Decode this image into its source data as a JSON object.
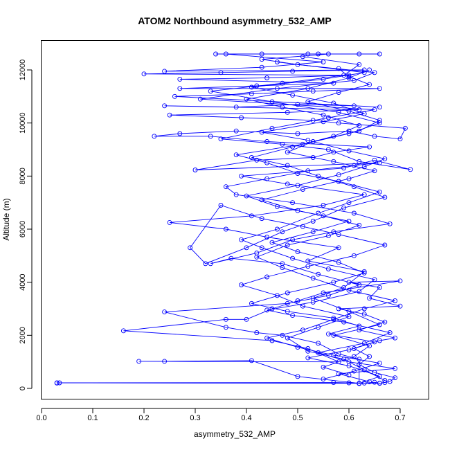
{
  "chart_data": {
    "type": "line",
    "title": "ATOM2 Northbound asymmetry_532_AMP",
    "xlabel": "asymmetry_532_AMP",
    "ylabel": "Altitude (m)",
    "xlim": [
      0.0,
      0.75
    ],
    "ylim": [
      0,
      12800
    ],
    "x_ticks": [
      "0.0",
      "0.1",
      "0.2",
      "0.3",
      "0.4",
      "0.5",
      "0.6",
      "0.7"
    ],
    "y_ticks": [
      "0",
      "2000",
      "4000",
      "6000",
      "8000",
      "10000",
      "12000"
    ],
    "grid": false,
    "legend": "none",
    "marker": "open-circle",
    "color": "#0000ff",
    "series": [
      {
        "points": [
          [
            0.03,
            200
          ],
          [
            0.03,
            210
          ],
          [
            0.57,
            220
          ],
          [
            0.6,
            210
          ],
          [
            0.63,
            200
          ],
          [
            0.65,
            230
          ],
          [
            0.66,
            190
          ],
          [
            0.67,
            220
          ],
          [
            0.68,
            260
          ],
          [
            0.69,
            400
          ],
          [
            0.65,
            600
          ],
          [
            0.62,
            900
          ],
          [
            0.64,
            1200
          ],
          [
            0.61,
            1500
          ],
          [
            0.66,
            1800
          ],
          [
            0.69,
            1900
          ],
          [
            0.62,
            2200
          ],
          [
            0.67,
            2500
          ],
          [
            0.63,
            2800
          ],
          [
            0.58,
            3000
          ],
          [
            0.7,
            3100
          ],
          [
            0.64,
            3400
          ],
          [
            0.66,
            3800
          ],
          [
            0.6,
            4000
          ],
          [
            0.7,
            4050
          ],
          [
            0.55,
            3600
          ],
          [
            0.5,
            3300
          ],
          [
            0.45,
            3000
          ],
          [
            0.4,
            2600
          ],
          [
            0.36,
            2600
          ],
          [
            0.16,
            2170
          ],
          [
            0.45,
            1800
          ],
          [
            0.52,
            1500
          ],
          [
            0.58,
            1000
          ],
          [
            0.19,
            1020
          ],
          [
            0.24,
            1020
          ],
          [
            0.41,
            1050
          ],
          [
            0.5,
            450
          ],
          [
            0.62,
            190
          ],
          [
            0.66,
            200
          ],
          [
            0.035,
            210
          ],
          [
            0.62,
            190
          ],
          [
            0.62,
            1100
          ],
          [
            0.58,
            1300
          ],
          [
            0.54,
            1700
          ],
          [
            0.47,
            2000
          ],
          [
            0.42,
            2100
          ],
          [
            0.36,
            2300
          ],
          [
            0.24,
            2880
          ],
          [
            0.48,
            3200
          ],
          [
            0.56,
            3500
          ],
          [
            0.62,
            3900
          ],
          [
            0.54,
            4300
          ],
          [
            0.47,
            4700
          ],
          [
            0.37,
            4900
          ],
          [
            0.33,
            4700
          ],
          [
            0.42,
            5100
          ],
          [
            0.49,
            5600
          ],
          [
            0.57,
            5900
          ],
          [
            0.68,
            6200
          ],
          [
            0.61,
            6600
          ],
          [
            0.49,
            7000
          ],
          [
            0.38,
            7300
          ],
          [
            0.36,
            7600
          ],
          [
            0.44,
            7900
          ],
          [
            0.52,
            8200
          ],
          [
            0.61,
            8400
          ],
          [
            0.66,
            8500
          ],
          [
            0.3,
            8230
          ],
          [
            0.42,
            8600
          ],
          [
            0.53,
            8700
          ],
          [
            0.57,
            8900
          ],
          [
            0.64,
            9100
          ],
          [
            0.44,
            9300
          ],
          [
            0.33,
            9500
          ],
          [
            0.22,
            9500
          ],
          [
            0.27,
            9600
          ],
          [
            0.38,
            9700
          ],
          [
            0.5,
            9600
          ],
          [
            0.6,
            9700
          ],
          [
            0.65,
            9500
          ],
          [
            0.7,
            9400
          ],
          [
            0.71,
            9800
          ],
          [
            0.58,
            10000
          ],
          [
            0.53,
            10100
          ],
          [
            0.39,
            10200
          ],
          [
            0.25,
            10300
          ],
          [
            0.48,
            10400
          ],
          [
            0.62,
            10500
          ],
          [
            0.24,
            10650
          ],
          [
            0.38,
            10600
          ],
          [
            0.5,
            10700
          ],
          [
            0.61,
            10650
          ],
          [
            0.66,
            10600
          ],
          [
            0.26,
            11000
          ],
          [
            0.41,
            11100
          ],
          [
            0.53,
            11200
          ],
          [
            0.66,
            11300
          ],
          [
            0.27,
            11300
          ],
          [
            0.42,
            11400
          ],
          [
            0.57,
            11500
          ],
          [
            0.27,
            11650
          ],
          [
            0.44,
            11700
          ],
          [
            0.6,
            11800
          ],
          [
            0.2,
            11850
          ],
          [
            0.35,
            11900
          ],
          [
            0.49,
            11950
          ],
          [
            0.63,
            12000
          ],
          [
            0.24,
            11950
          ],
          [
            0.43,
            12100
          ],
          [
            0.55,
            12300
          ],
          [
            0.36,
            12600
          ],
          [
            0.43,
            12600
          ],
          [
            0.52,
            12600
          ],
          [
            0.54,
            12600
          ],
          [
            0.62,
            12600
          ],
          [
            0.66,
            12600
          ],
          [
            0.34,
            12600
          ]
        ]
      },
      {
        "points": [
          [
            0.6,
            500
          ],
          [
            0.55,
            800
          ],
          [
            0.61,
            1200
          ],
          [
            0.64,
            1600
          ],
          [
            0.57,
            2000
          ],
          [
            0.66,
            2400
          ],
          [
            0.6,
            2900
          ],
          [
            0.53,
            3400
          ],
          [
            0.59,
            3800
          ],
          [
            0.63,
            4400
          ],
          [
            0.52,
            4800
          ],
          [
            0.58,
            5300
          ],
          [
            0.44,
            5700
          ],
          [
            0.36,
            6000
          ],
          [
            0.25,
            6250
          ],
          [
            0.41,
            6500
          ],
          [
            0.55,
            6900
          ],
          [
            0.63,
            7300
          ],
          [
            0.48,
            7700
          ],
          [
            0.39,
            8000
          ],
          [
            0.59,
            8300
          ],
          [
            0.65,
            8600
          ],
          [
            0.72,
            8250
          ],
          [
            0.62,
            8550
          ],
          [
            0.56,
            9000
          ],
          [
            0.47,
            9200
          ],
          [
            0.35,
            9400
          ],
          [
            0.45,
            9800
          ],
          [
            0.56,
            10200
          ],
          [
            0.65,
            10500
          ],
          [
            0.31,
            10900
          ],
          [
            0.46,
            11300
          ],
          [
            0.61,
            11600
          ],
          [
            0.65,
            11900
          ],
          [
            0.5,
            12200
          ],
          [
            0.43,
            12400
          ],
          [
            0.56,
            12600
          ]
        ]
      },
      {
        "points": [
          [
            0.67,
            300
          ],
          [
            0.63,
            700
          ],
          [
            0.59,
            1100
          ],
          [
            0.52,
            1400
          ],
          [
            0.48,
            1900
          ],
          [
            0.54,
            2300
          ],
          [
            0.6,
            2700
          ],
          [
            0.51,
            3100
          ],
          [
            0.46,
            3500
          ],
          [
            0.39,
            3900
          ],
          [
            0.44,
            4200
          ],
          [
            0.52,
            4600
          ],
          [
            0.61,
            5000
          ],
          [
            0.67,
            5400
          ],
          [
            0.58,
            5800
          ],
          [
            0.51,
            6100
          ],
          [
            0.43,
            6400
          ],
          [
            0.35,
            6900
          ],
          [
            0.29,
            5300
          ],
          [
            0.32,
            4700
          ],
          [
            0.4,
            5300
          ],
          [
            0.47,
            5900
          ],
          [
            0.53,
            6300
          ],
          [
            0.59,
            6800
          ],
          [
            0.67,
            7200
          ],
          [
            0.61,
            7600
          ],
          [
            0.54,
            8000
          ],
          [
            0.48,
            8400
          ],
          [
            0.41,
            8700
          ],
          [
            0.49,
            9100
          ],
          [
            0.57,
            9500
          ],
          [
            0.62,
            9900
          ],
          [
            0.55,
            10300
          ],
          [
            0.47,
            10600
          ],
          [
            0.4,
            10900
          ],
          [
            0.52,
            11300
          ],
          [
            0.6,
            11700
          ],
          [
            0.64,
            12000
          ]
        ]
      },
      {
        "points": [
          [
            0.64,
            250
          ],
          [
            0.58,
            550
          ],
          [
            0.69,
            750
          ],
          [
            0.6,
            1000
          ],
          [
            0.54,
            1350
          ],
          [
            0.63,
            1700
          ],
          [
            0.68,
            2100
          ],
          [
            0.59,
            2500
          ],
          [
            0.49,
            2750
          ],
          [
            0.44,
            2950
          ],
          [
            0.53,
            3250
          ],
          [
            0.62,
            3650
          ],
          [
            0.65,
            4100
          ],
          [
            0.56,
            4500
          ],
          [
            0.49,
            4900
          ],
          [
            0.43,
            5300
          ],
          [
            0.39,
            5600
          ],
          [
            0.46,
            6000
          ],
          [
            0.54,
            6600
          ],
          [
            0.6,
            7000
          ],
          [
            0.66,
            7400
          ],
          [
            0.58,
            7800
          ],
          [
            0.5,
            8100
          ],
          [
            0.44,
            8500
          ],
          [
            0.38,
            8800
          ],
          [
            0.51,
            9200
          ],
          [
            0.6,
            9600
          ],
          [
            0.66,
            10000
          ],
          [
            0.58,
            10400
          ],
          [
            0.45,
            10800
          ],
          [
            0.33,
            11200
          ],
          [
            0.47,
            11500
          ],
          [
            0.59,
            11800
          ],
          [
            0.62,
            12200
          ],
          [
            0.51,
            12500
          ]
        ]
      },
      {
        "points": [
          [
            0.55,
            350
          ],
          [
            0.61,
            650
          ],
          [
            0.66,
            950
          ],
          [
            0.57,
            1250
          ],
          [
            0.5,
            1550
          ],
          [
            0.44,
            1900
          ],
          [
            0.51,
            2200
          ],
          [
            0.57,
            2600
          ],
          [
            0.63,
            3000
          ],
          [
            0.69,
            3300
          ],
          [
            0.6,
            3700
          ],
          [
            0.53,
            4150
          ],
          [
            0.47,
            4550
          ],
          [
            0.42,
            4950
          ],
          [
            0.48,
            5400
          ],
          [
            0.56,
            5750
          ],
          [
            0.62,
            6150
          ],
          [
            0.55,
            6500
          ],
          [
            0.46,
            6850
          ],
          [
            0.4,
            7250
          ],
          [
            0.5,
            7650
          ],
          [
            0.58,
            8050
          ],
          [
            0.63,
            8350
          ],
          [
            0.67,
            8650
          ],
          [
            0.6,
            8950
          ],
          [
            0.52,
            9350
          ],
          [
            0.43,
            9650
          ],
          [
            0.55,
            10050
          ],
          [
            0.63,
            10350
          ],
          [
            0.57,
            10750
          ],
          [
            0.49,
            11050
          ],
          [
            0.41,
            11350
          ],
          [
            0.55,
            11650
          ],
          [
            0.63,
            11900
          ],
          [
            0.46,
            12300
          ]
        ]
      },
      {
        "points": [
          [
            0.62,
            180
          ],
          [
            0.66,
            450
          ],
          [
            0.6,
            850
          ],
          [
            0.52,
            1150
          ],
          [
            0.6,
            1450
          ],
          [
            0.65,
            1750
          ],
          [
            0.56,
            2050
          ],
          [
            0.62,
            2350
          ],
          [
            0.57,
            2650
          ],
          [
            0.48,
            2900
          ],
          [
            0.41,
            3200
          ],
          [
            0.48,
            3600
          ],
          [
            0.57,
            4000
          ],
          [
            0.63,
            4350
          ],
          [
            0.58,
            4750
          ],
          [
            0.5,
            5150
          ],
          [
            0.45,
            5500
          ],
          [
            0.53,
            5900
          ],
          [
            0.6,
            6300
          ],
          [
            0.5,
            6700
          ],
          [
            0.43,
            7100
          ],
          [
            0.51,
            7500
          ],
          [
            0.6,
            7900
          ],
          [
            0.65,
            8200
          ],
          [
            0.57,
            8550
          ],
          [
            0.48,
            8900
          ],
          [
            0.53,
            9300
          ],
          [
            0.62,
            9700
          ],
          [
            0.66,
            10100
          ],
          [
            0.6,
            10450
          ],
          [
            0.52,
            10800
          ],
          [
            0.58,
            11150
          ],
          [
            0.64,
            11450
          ],
          [
            0.6,
            11750
          ],
          [
            0.58,
            12050
          ]
        ]
      }
    ]
  }
}
